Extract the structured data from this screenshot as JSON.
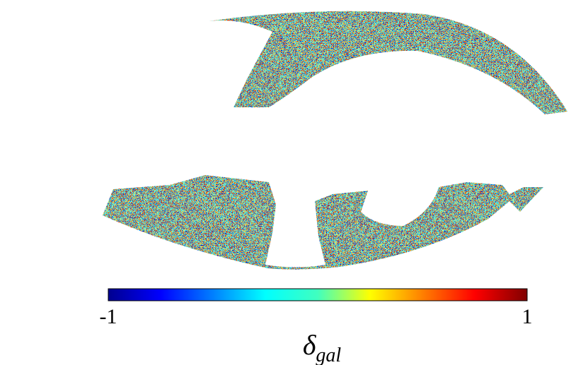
{
  "colorbar": {
    "lim": [
      -1,
      1
    ],
    "ticks": [
      -1,
      1
    ],
    "label": {
      "symbol": "δ",
      "subscript": "gal"
    }
  }
}
